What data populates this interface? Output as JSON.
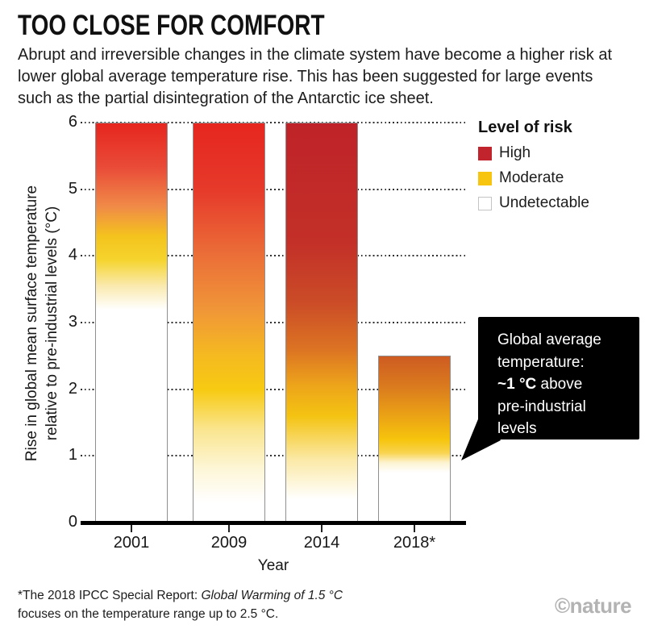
{
  "header": {
    "title": "TOO CLOSE FOR COMFORT",
    "subtitle": "Abrupt and irreversible changes in the climate system have become a higher risk at lower global average temperature rise. This has been suggested for large events such as the partial disintegration of the Antarctic ice sheet."
  },
  "chart_data": {
    "type": "bar",
    "categories": [
      "2001",
      "2009",
      "2014",
      "2018*"
    ],
    "values": [
      6,
      6,
      6,
      2.5
    ],
    "xlabel": "Year",
    "ylabel": "Rise in global mean surface temperature relative to pre-industrial levels (°C)",
    "ylabel_lines": [
      "Rise in global mean surface temperature",
      "relative to pre-industrial levels (°C)"
    ],
    "ylim": [
      0,
      6
    ],
    "yticks": [
      0,
      1,
      2,
      3,
      4,
      5,
      6
    ],
    "grid": "horizontal-dotted",
    "legend": {
      "title": "Level of risk",
      "position": "top-right",
      "entries": [
        {
          "label": "High",
          "color": "#c2242e",
          "border": "#c2242e"
        },
        {
          "label": "Moderate",
          "color": "#f7c410",
          "border": "#f7c410"
        },
        {
          "label": "Undetectable",
          "color": "#ffffff",
          "border": "#c4c4c4"
        }
      ]
    },
    "series": [
      {
        "category": "2001",
        "bar_top": 6,
        "risk_gradient": [
          {
            "value": 6.0,
            "color": "#e6261f"
          },
          {
            "value": 5.35,
            "color": "#e94a38"
          },
          {
            "value": 4.75,
            "color": "#f08a48"
          },
          {
            "value": 4.3,
            "color": "#f4c31d"
          },
          {
            "value": 3.95,
            "color": "#f5d42d"
          },
          {
            "value": 3.55,
            "color": "#faeab0"
          },
          {
            "value": 3.2,
            "color": "#ffffff"
          },
          {
            "value": 0,
            "color": "#ffffff"
          }
        ]
      },
      {
        "category": "2009",
        "bar_top": 6,
        "risk_gradient": [
          {
            "value": 6.0,
            "color": "#e6261f"
          },
          {
            "value": 5.0,
            "color": "#e63a2b"
          },
          {
            "value": 4.0,
            "color": "#eb6f38"
          },
          {
            "value": 3.2,
            "color": "#f09638"
          },
          {
            "value": 2.5,
            "color": "#f5ba20"
          },
          {
            "value": 2.0,
            "color": "#f7ca12"
          },
          {
            "value": 1.4,
            "color": "#fae58f"
          },
          {
            "value": 0.8,
            "color": "#fdf6d8"
          },
          {
            "value": 0.3,
            "color": "#ffffff"
          },
          {
            "value": 0,
            "color": "#ffffff"
          }
        ]
      },
      {
        "category": "2014",
        "bar_top": 6,
        "risk_gradient": [
          {
            "value": 6.0,
            "color": "#bf2329"
          },
          {
            "value": 4.2,
            "color": "#c33028"
          },
          {
            "value": 3.3,
            "color": "#cb4c27"
          },
          {
            "value": 2.6,
            "color": "#dc7423"
          },
          {
            "value": 2.05,
            "color": "#eda51a"
          },
          {
            "value": 1.6,
            "color": "#f4c312"
          },
          {
            "value": 0.95,
            "color": "#fbe9a6"
          },
          {
            "value": 0.35,
            "color": "#ffffff"
          },
          {
            "value": 0,
            "color": "#ffffff"
          }
        ]
      },
      {
        "category": "2018*",
        "bar_top": 2.5,
        "risk_gradient": [
          {
            "value": 2.5,
            "color": "#ce5c22"
          },
          {
            "value": 2.05,
            "color": "#da7a1e"
          },
          {
            "value": 1.6,
            "color": "#eba315"
          },
          {
            "value": 1.25,
            "color": "#f6c40c"
          },
          {
            "value": 1.05,
            "color": "#f8d44f"
          },
          {
            "value": 0.9,
            "color": "#fdf3d2"
          },
          {
            "value": 0.75,
            "color": "#ffffff"
          },
          {
            "value": 0,
            "color": "#ffffff"
          }
        ]
      }
    ],
    "annotation": {
      "l1": "Global average",
      "l2": "temperature:",
      "l3_bold": "~1 °C",
      "l3_rest": " above",
      "l4": "pre-industrial",
      "l5": "levels",
      "points_to_value": 1,
      "points_to_category": "2018*",
      "bubble_color": "#000000"
    }
  },
  "footnote": {
    "prefix": "*The 2018 IPCC Special Report: ",
    "italic": "Global Warming of 1.5 °C",
    "line2": "focuses on the temperature range up to 2.5 °C."
  },
  "credit": "©nature"
}
